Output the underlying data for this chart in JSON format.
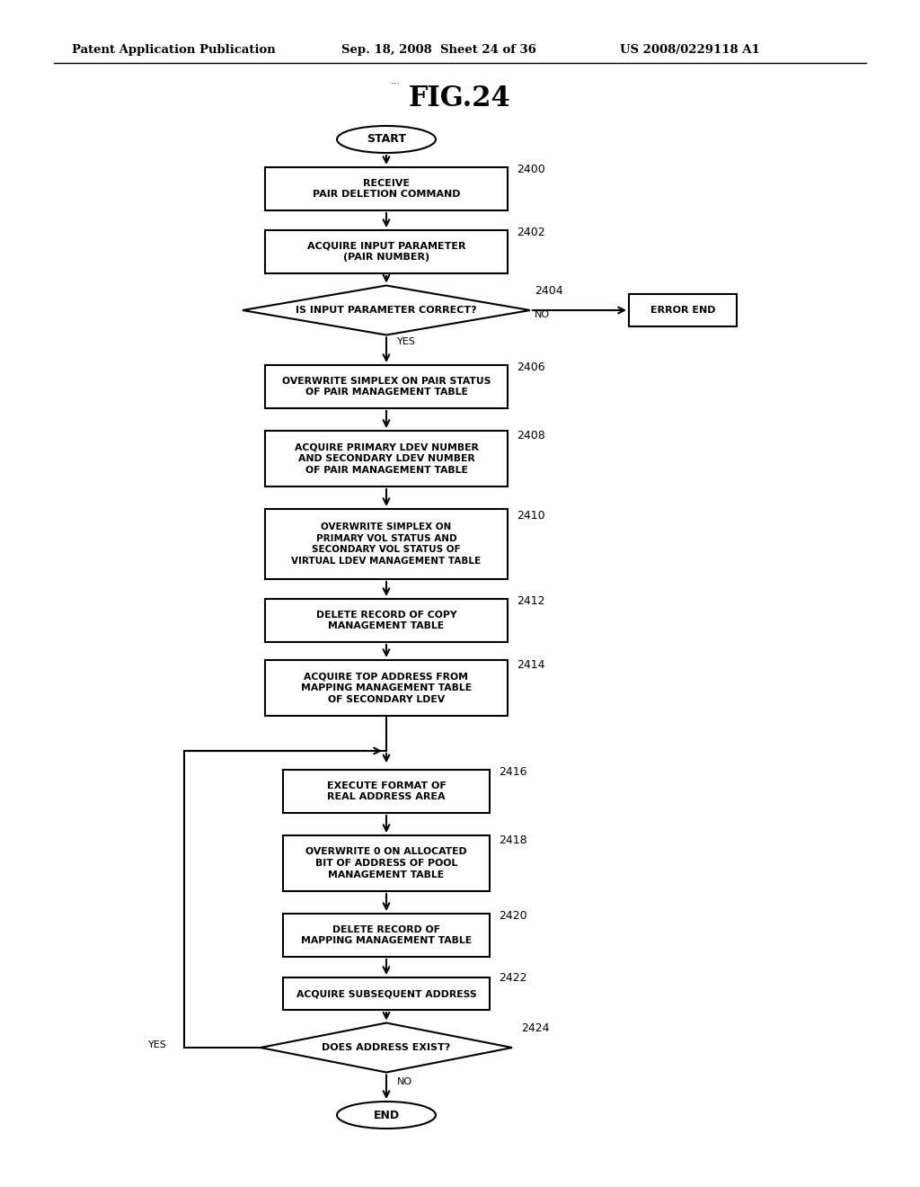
{
  "title": "FIG.24",
  "header_left": "Patent Application Publication",
  "header_mid": "Sep. 18, 2008  Sheet 24 of 36",
  "header_right": "US 2008/0229118 A1",
  "bg_color": "#ffffff",
  "fig_width": 10.24,
  "fig_height": 13.2,
  "dpi": 100
}
